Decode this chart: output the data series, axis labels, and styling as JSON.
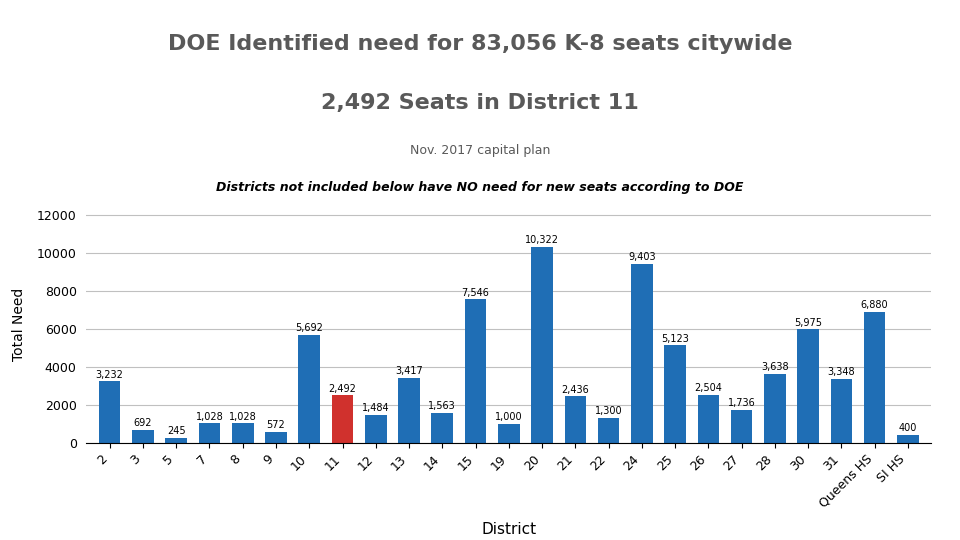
{
  "title_line1": "DOE Identified need for 83,056 K-8 seats citywide",
  "title_line2": "2,492 Seats in District 11",
  "subtitle1": "Nov. 2017 capital plan",
  "subtitle2": "Districts not included below have NO need for new seats according to DOE",
  "xlabel": "District",
  "ylabel": "Total Need",
  "categories": [
    "2",
    "3",
    "5",
    "7",
    "8",
    "9",
    "10",
    "11",
    "12",
    "13",
    "14",
    "15",
    "19",
    "20",
    "21",
    "22",
    "24",
    "25",
    "26",
    "27",
    "28",
    "30",
    "31",
    "Queens HS",
    "SI HS"
  ],
  "values": [
    3232,
    692,
    245,
    1028,
    1028,
    572,
    5692,
    2492,
    1484,
    3417,
    1563,
    7546,
    1000,
    10322,
    2436,
    1300,
    9403,
    5123,
    2504,
    1736,
    3638,
    5975,
    3348,
    6880,
    400
  ],
  "bar_colors": [
    "#1f6eb5",
    "#1f6eb5",
    "#1f6eb5",
    "#1f6eb5",
    "#1f6eb5",
    "#1f6eb5",
    "#1f6eb5",
    "#d0312d",
    "#1f6eb5",
    "#1f6eb5",
    "#1f6eb5",
    "#1f6eb5",
    "#1f6eb5",
    "#1f6eb5",
    "#1f6eb5",
    "#1f6eb5",
    "#1f6eb5",
    "#1f6eb5",
    "#1f6eb5",
    "#1f6eb5",
    "#1f6eb5",
    "#1f6eb5",
    "#1f6eb5",
    "#1f6eb5",
    "#1f6eb5"
  ],
  "ylim": [
    0,
    12500
  ],
  "yticks": [
    0,
    2000,
    4000,
    6000,
    8000,
    10000,
    12000
  ],
  "background_color": "#ffffff",
  "title_color": "#595959",
  "label_color": "#000000",
  "grid_color": "#c0c0c0"
}
